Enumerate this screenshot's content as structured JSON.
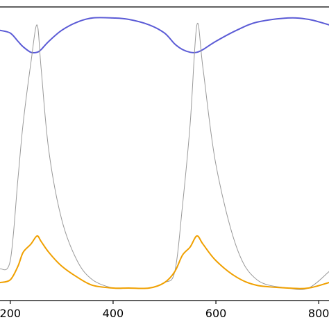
{
  "chart_data": {
    "type": "line",
    "x_ticks": [
      200,
      400,
      600,
      800
    ],
    "xlim": [
      180,
      820
    ],
    "ylim": [
      0,
      1
    ],
    "grid": false,
    "x": [
      180,
      200,
      215,
      225,
      240,
      252,
      260,
      275,
      300,
      330,
      360,
      400,
      430,
      470,
      500,
      520,
      535,
      550,
      563,
      575,
      600,
      640,
      680,
      740,
      780,
      820
    ],
    "series": [
      {
        "color": "#5b5bd6",
        "stroke_width": 2,
        "values": [
          0.94,
          0.93,
          0.9,
          0.88,
          0.86,
          0.86,
          0.87,
          0.9,
          0.94,
          0.97,
          0.985,
          0.985,
          0.98,
          0.96,
          0.93,
          0.89,
          0.87,
          0.86,
          0.86,
          0.87,
          0.9,
          0.94,
          0.97,
          0.985,
          0.98,
          0.96
        ]
      },
      {
        "color": "#999999",
        "stroke_width": 1,
        "values": [
          0.07,
          0.1,
          0.4,
          0.6,
          0.82,
          0.96,
          0.8,
          0.5,
          0.25,
          0.1,
          0.03,
          0.0,
          0.0,
          0.0,
          0.02,
          0.06,
          0.3,
          0.6,
          0.96,
          0.8,
          0.45,
          0.15,
          0.03,
          0.0,
          0.0,
          0.06
        ]
      },
      {
        "color": "#f0a000",
        "stroke_width": 2,
        "values": [
          0.02,
          0.03,
          0.08,
          0.13,
          0.16,
          0.19,
          0.17,
          0.13,
          0.08,
          0.04,
          0.01,
          0.0,
          0.0,
          0.0,
          0.02,
          0.06,
          0.12,
          0.15,
          0.19,
          0.16,
          0.1,
          0.04,
          0.01,
          0.0,
          0.0,
          0.02
        ]
      }
    ]
  }
}
